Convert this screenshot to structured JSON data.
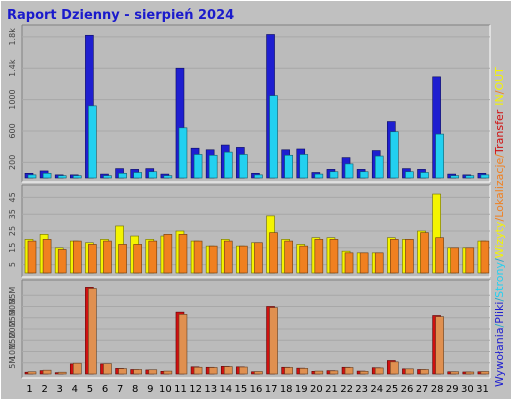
{
  "title": "Raport Dzienny -  sierpień 2024",
  "colors": {
    "background": "#c0c0c0",
    "plot": "#bbbbbb",
    "wywolania": "#1e1ed0",
    "pliki": "#22d0f0",
    "strony": "#28a8c8",
    "wizyty": "#f4f400",
    "lokalizacje": "#f08020",
    "transfer": "#d01010",
    "in_out": "#e09050",
    "weekend_day": "#008000",
    "title": "#1a1acc"
  },
  "chart_data": [
    {
      "type": "bar",
      "panel": "top",
      "ticks": [
        "200",
        "600",
        "1000",
        "1.4k",
        "1.8k"
      ],
      "tick_values": [
        200,
        600,
        1000,
        1400,
        1800
      ],
      "ylim": [
        0,
        1900
      ],
      "categories": [
        "1",
        "2",
        "3",
        "4",
        "5",
        "6",
        "7",
        "8",
        "9",
        "10",
        "11",
        "12",
        "13",
        "14",
        "15",
        "16",
        "17",
        "18",
        "19",
        "20",
        "21",
        "22",
        "23",
        "24",
        "25",
        "26",
        "27",
        "28",
        "29",
        "30",
        "31"
      ],
      "series": [
        {
          "name": "Wywołania",
          "color_key": "wywolania",
          "values": [
            60,
            90,
            40,
            40,
            1820,
            50,
            120,
            110,
            120,
            50,
            1400,
            380,
            360,
            420,
            390,
            60,
            1830,
            360,
            370,
            70,
            110,
            260,
            110,
            350,
            720,
            120,
            110,
            1290,
            50,
            40,
            60
          ]
        },
        {
          "name": "Pliki",
          "color_key": "pliki",
          "values": [
            40,
            60,
            30,
            30,
            920,
            30,
            60,
            70,
            80,
            30,
            640,
            300,
            290,
            330,
            300,
            40,
            1050,
            290,
            300,
            50,
            80,
            180,
            80,
            280,
            590,
            80,
            70,
            560,
            30,
            30,
            40
          ]
        }
      ]
    },
    {
      "type": "bar",
      "panel": "middle",
      "ticks": [
        "5",
        "15",
        "25",
        "35",
        "45"
      ],
      "tick_values": [
        5,
        15,
        25,
        35,
        45
      ],
      "ylim": [
        0,
        50
      ],
      "categories": [
        "1",
        "2",
        "3",
        "4",
        "5",
        "6",
        "7",
        "8",
        "9",
        "10",
        "11",
        "12",
        "13",
        "14",
        "15",
        "16",
        "17",
        "18",
        "19",
        "20",
        "21",
        "22",
        "23",
        "24",
        "25",
        "26",
        "27",
        "28",
        "29",
        "30",
        "31"
      ],
      "series": [
        {
          "name": "Wizyty",
          "color_key": "wizyty",
          "values": [
            20,
            23,
            15,
            19,
            18,
            20,
            28,
            22,
            20,
            22,
            25,
            19,
            16,
            20,
            16,
            18,
            34,
            20,
            17,
            21,
            21,
            13,
            12,
            12,
            21,
            20,
            25,
            47,
            15,
            15,
            19
          ]
        },
        {
          "name": "Lokalizacje",
          "color_key": "lokalizacje",
          "values": [
            19,
            20,
            14,
            19,
            17,
            19,
            17,
            17,
            19,
            23,
            23,
            19,
            16,
            19,
            16,
            18,
            24,
            19,
            16,
            20,
            20,
            12,
            12,
            12,
            20,
            20,
            24,
            21,
            15,
            15,
            19
          ]
        }
      ]
    },
    {
      "type": "bar",
      "panel": "bottom",
      "ticks": [
        "5M",
        "10M",
        "15M",
        "20M",
        "25M",
        "30M",
        "35M"
      ],
      "tick_values": [
        5,
        10,
        15,
        20,
        25,
        30,
        35
      ],
      "ylim": [
        0,
        40
      ],
      "categories": [
        "1",
        "2",
        "3",
        "4",
        "5",
        "6",
        "7",
        "8",
        "9",
        "10",
        "11",
        "12",
        "13",
        "14",
        "15",
        "16",
        "17",
        "18",
        "19",
        "20",
        "21",
        "22",
        "23",
        "24",
        "25",
        "26",
        "27",
        "28",
        "29",
        "30",
        "31"
      ],
      "series": [
        {
          "name": "Transfer",
          "color_key": "transfer",
          "values": [
            0.8,
            1.5,
            0.6,
            4.5,
            38.5,
            4.5,
            2.5,
            2.0,
            1.8,
            1.2,
            27.5,
            3.2,
            3.0,
            3.4,
            3.2,
            1.0,
            30.0,
            3.0,
            2.6,
            1.2,
            1.5,
            3.0,
            1.3,
            2.8,
            6.0,
            2.3,
            2.0,
            26.0,
            1.0,
            0.9,
            1.0
          ]
        },
        {
          "name": "IN",
          "color_key": "in_out",
          "values": [
            1.0,
            1.7,
            0.8,
            4.8,
            38.0,
            4.6,
            2.4,
            2.0,
            1.9,
            1.3,
            26.5,
            3.0,
            2.9,
            3.3,
            3.1,
            1.1,
            29.5,
            2.9,
            2.5,
            1.3,
            1.4,
            2.9,
            1.2,
            2.7,
            5.4,
            2.3,
            2.0,
            25.5,
            1.0,
            0.9,
            1.1
          ]
        }
      ]
    }
  ],
  "x_labels": [
    "1",
    "2",
    "3",
    "4",
    "5",
    "6",
    "7",
    "8",
    "9",
    "10",
    "11",
    "12",
    "13",
    "14",
    "15",
    "16",
    "17",
    "18",
    "19",
    "20",
    "21",
    "22",
    "23",
    "24",
    "25",
    "26",
    "27",
    "28",
    "29",
    "30",
    "31"
  ],
  "weekend_days": [
    "3",
    "4",
    "10",
    "11",
    "17",
    "18",
    "24",
    "25",
    "31"
  ],
  "legend": [
    {
      "text": "Wywołania",
      "color_key": "wywolania"
    },
    {
      "text": "/",
      "color_key": "strony"
    },
    {
      "text": "Pliki",
      "color_key": "wywolania"
    },
    {
      "text": "/",
      "color_key": "strony"
    },
    {
      "text": "Strony",
      "color_key": "pliki"
    },
    {
      "text": "/",
      "color_key": "strony"
    },
    {
      "text": "Wizyty",
      "color_key": "wizyty"
    },
    {
      "text": "/",
      "color_key": "lokalizacje"
    },
    {
      "text": "Lokalizacje",
      "color_key": "lokalizacje"
    },
    {
      "text": "/",
      "color_key": "lokalizacje"
    },
    {
      "text": "Transfer",
      "color_key": "transfer"
    },
    {
      "text": "IN",
      "color_key": "wizyty"
    },
    {
      "text": "/",
      "color_key": "lokalizacje"
    },
    {
      "text": "OUT",
      "color_key": "wizyty"
    }
  ]
}
